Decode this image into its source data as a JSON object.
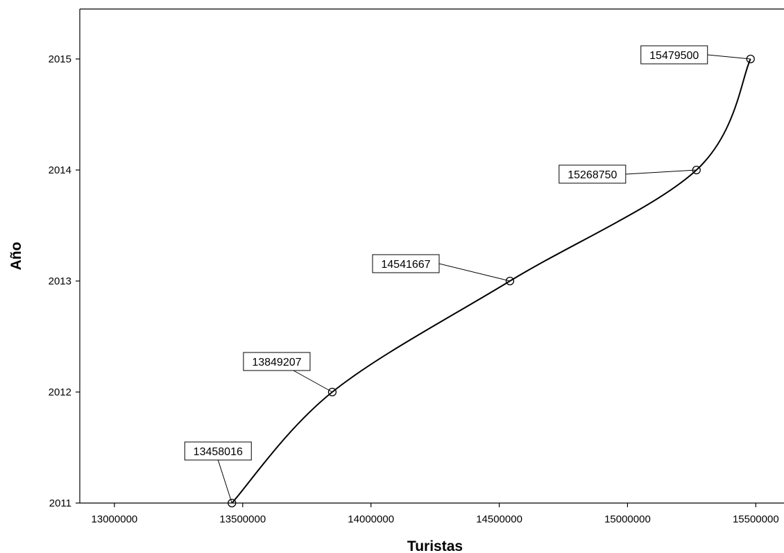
{
  "chart_data": {
    "type": "line",
    "xlabel": "Turistas",
    "ylabel": "Año",
    "xlim": [
      12865000,
      15610000
    ],
    "ylim": [
      2011,
      2015.45
    ],
    "xticks": [
      13000000,
      13500000,
      14000000,
      14500000,
      15000000,
      15500000
    ],
    "yticks": [
      2011,
      2012,
      2013,
      2014,
      2015
    ],
    "xtick_labels": [
      "13000000",
      "13500000",
      "14000000",
      "14500000",
      "15000000",
      "15500000"
    ],
    "ytick_labels": [
      "2011",
      "2012",
      "2013",
      "2014",
      "2015"
    ],
    "series": [
      {
        "points": [
          {
            "x": 13458016,
            "y": 2011,
            "label": "13458016"
          },
          {
            "x": 13849207,
            "y": 2012,
            "label": "13849207"
          },
          {
            "x": 14541667,
            "y": 2013,
            "label": "14541667"
          },
          {
            "x": 15268750,
            "y": 2014,
            "label": "15268750"
          },
          {
            "x": 15479500,
            "y": 2015,
            "label": "15479500"
          }
        ]
      }
    ],
    "grid": false,
    "smooth": true,
    "marker": "open-circle",
    "colors": {
      "line": "#000000",
      "background": "#ffffff"
    }
  }
}
